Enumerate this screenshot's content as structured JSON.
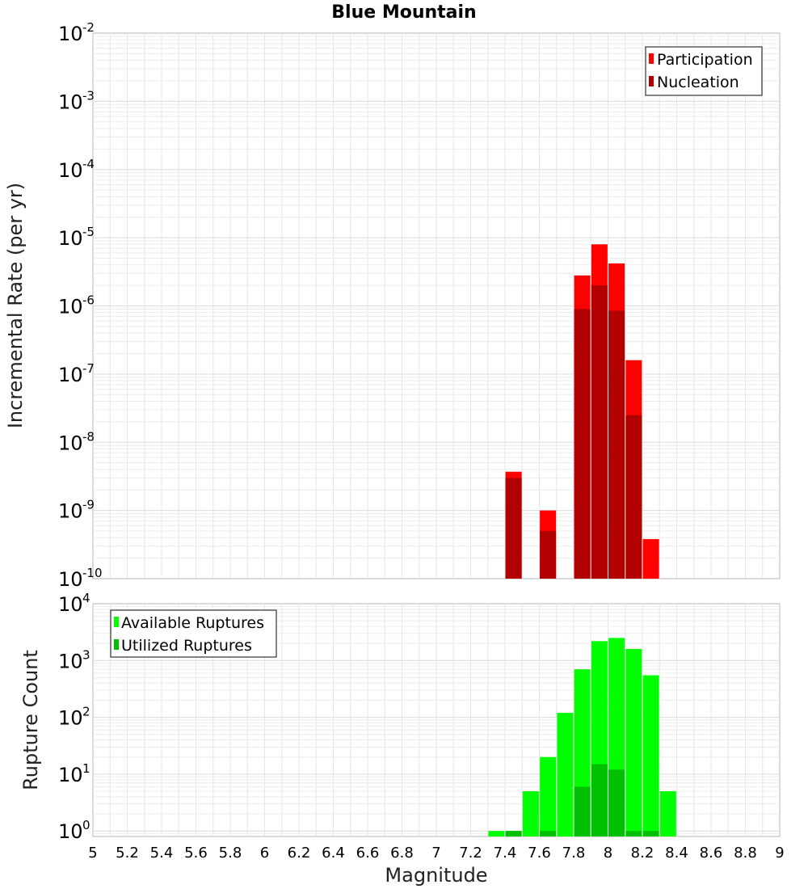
{
  "chart_data": [
    {
      "type": "bar",
      "title": "Blue Mountain",
      "xlabel": "",
      "ylabel": "Incremental Rate (per yr)",
      "yscale": "log",
      "ylim": [
        1e-10,
        0.01
      ],
      "xlim": [
        5,
        9
      ],
      "grid": true,
      "legend_position": "top-right",
      "x": [
        7.45,
        7.65,
        7.85,
        7.95,
        8.05,
        8.15,
        8.25
      ],
      "series": [
        {
          "name": "Participation",
          "color": "#ff0000",
          "values": [
            3.7e-09,
            1e-09,
            2.8e-06,
            8e-06,
            4.2e-06,
            1.6e-07,
            3.8e-10
          ]
        },
        {
          "name": "Nucleation",
          "color": "#b20000",
          "values": [
            3e-09,
            5e-10,
            9e-07,
            2e-06,
            8.5e-07,
            2.5e-08,
            null
          ]
        }
      ],
      "y_ticks": [
        {
          "base": "10",
          "exp": "-2",
          "value": 0.01
        },
        {
          "base": "10",
          "exp": "-3",
          "value": 0.001
        },
        {
          "base": "10",
          "exp": "-4",
          "value": 0.0001
        },
        {
          "base": "10",
          "exp": "-5",
          "value": 1e-05
        },
        {
          "base": "10",
          "exp": "-6",
          "value": 1e-06
        },
        {
          "base": "10",
          "exp": "-7",
          "value": 1e-07
        },
        {
          "base": "10",
          "exp": "-8",
          "value": 1e-08
        },
        {
          "base": "10",
          "exp": "-9",
          "value": 1e-09
        },
        {
          "base": "10",
          "exp": "-10",
          "value": 1e-10
        }
      ]
    },
    {
      "type": "bar",
      "title": "",
      "xlabel": "Magnitude",
      "ylabel": "Rupture Count",
      "yscale": "log",
      "ylim": [
        0.8,
        10000.0
      ],
      "xlim": [
        5,
        9
      ],
      "grid": true,
      "legend_position": "top-left",
      "x_ticks": [
        "5",
        "5.2",
        "5.4",
        "5.6",
        "5.8",
        "6",
        "6.2",
        "6.4",
        "6.6",
        "6.8",
        "7",
        "7.2",
        "7.4",
        "7.6",
        "7.8",
        "8",
        "8.2",
        "8.4",
        "8.6",
        "8.8",
        "9"
      ],
      "x": [
        7.35,
        7.45,
        7.55,
        7.65,
        7.75,
        7.85,
        7.95,
        8.05,
        8.15,
        8.25,
        8.35
      ],
      "series": [
        {
          "name": "Available Ruptures",
          "color": "#00ff00",
          "values": [
            1,
            1,
            5,
            20,
            120,
            700,
            2200,
            2500,
            1600,
            550,
            5
          ]
        },
        {
          "name": "Utilized Ruptures",
          "color": "#00c000",
          "values": [
            null,
            1,
            null,
            1,
            null,
            6,
            15,
            12,
            1,
            1,
            null
          ]
        }
      ],
      "y_ticks": [
        {
          "base": "10",
          "exp": "4",
          "value": 10000.0
        },
        {
          "base": "10",
          "exp": "3",
          "value": 1000.0
        },
        {
          "base": "10",
          "exp": "2",
          "value": 100.0
        },
        {
          "base": "10",
          "exp": "1",
          "value": 10.0
        },
        {
          "base": "10",
          "exp": "0",
          "value": 1
        }
      ]
    }
  ]
}
